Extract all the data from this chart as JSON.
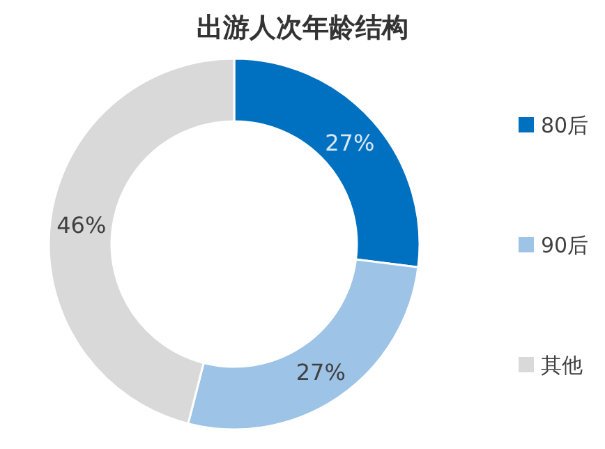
{
  "chart_data": {
    "type": "donut",
    "title": "出游人次年龄结构",
    "categories": [
      "80后",
      "90后",
      "其他"
    ],
    "values": [
      27,
      27,
      46
    ],
    "colors": [
      "#0070c0",
      "#9dc3e6",
      "#d9d9d9"
    ],
    "value_labels": [
      "27%",
      "27%",
      "46%"
    ],
    "legend": "right"
  }
}
